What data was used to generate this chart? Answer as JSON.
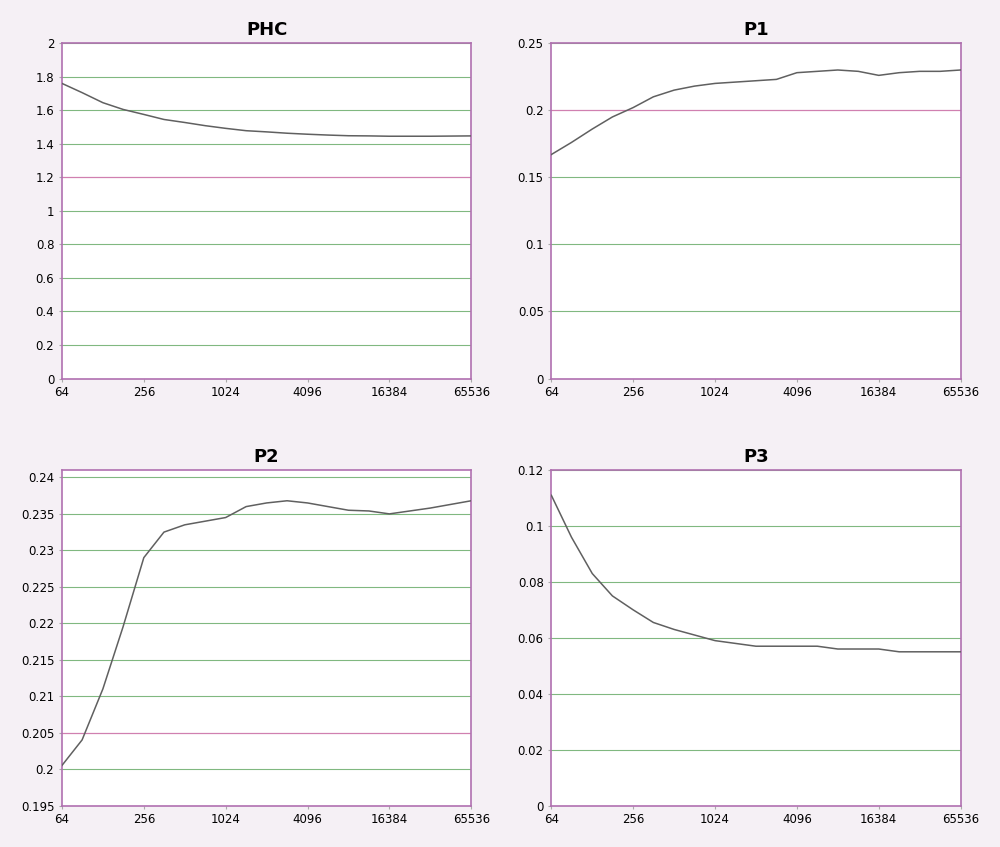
{
  "titles": [
    "PHC",
    "P1",
    "P2",
    "P3"
  ],
  "x_ticks": [
    64,
    256,
    1024,
    4096,
    16384,
    65536
  ],
  "phc": {
    "ylim": [
      0,
      2.0
    ],
    "yticks": [
      0,
      0.2,
      0.4,
      0.6,
      0.8,
      1.0,
      1.2,
      1.4,
      1.6,
      1.8,
      2.0
    ],
    "pink_lines": [
      1.2
    ],
    "green_lines": [
      0.2,
      0.4,
      0.6,
      0.8,
      1.0,
      1.4,
      1.6,
      1.8,
      2.0
    ],
    "gray_lines": [
      0,
      0.2,
      0.4,
      0.6,
      0.8,
      1.0,
      1.2,
      1.4,
      1.6,
      1.8,
      2.0
    ],
    "data_x": [
      64,
      90,
      128,
      180,
      256,
      360,
      512,
      724,
      1024,
      1448,
      2048,
      2896,
      4096,
      5792,
      8192,
      11584,
      16384,
      23168,
      32768,
      46336,
      65536
    ],
    "data_y": [
      1.76,
      1.705,
      1.645,
      1.605,
      1.575,
      1.545,
      1.527,
      1.508,
      1.492,
      1.478,
      1.471,
      1.463,
      1.457,
      1.452,
      1.448,
      1.447,
      1.445,
      1.445,
      1.445,
      1.446,
      1.447
    ]
  },
  "p1": {
    "ylim": [
      0,
      0.25
    ],
    "yticks": [
      0,
      0.05,
      0.1,
      0.15,
      0.2,
      0.25
    ],
    "pink_lines": [
      0.2
    ],
    "green_lines": [
      0.05,
      0.1,
      0.15,
      0.25
    ],
    "gray_lines": [
      0,
      0.05,
      0.1,
      0.15,
      0.2,
      0.25
    ],
    "data_x": [
      64,
      90,
      128,
      180,
      256,
      360,
      512,
      724,
      1024,
      1448,
      2048,
      2896,
      4096,
      5792,
      8192,
      11584,
      16384,
      23168,
      32768,
      46336,
      65536
    ],
    "data_y": [
      0.167,
      0.176,
      0.186,
      0.195,
      0.202,
      0.21,
      0.215,
      0.218,
      0.22,
      0.221,
      0.222,
      0.223,
      0.228,
      0.229,
      0.23,
      0.229,
      0.226,
      0.228,
      0.229,
      0.229,
      0.23
    ]
  },
  "p2": {
    "ylim": [
      0.195,
      0.241
    ],
    "yticks": [
      0.195,
      0.2,
      0.205,
      0.21,
      0.215,
      0.22,
      0.225,
      0.23,
      0.235,
      0.24
    ],
    "pink_lines": [
      0.205
    ],
    "green_lines": [
      0.2,
      0.21,
      0.215,
      0.22,
      0.225,
      0.23,
      0.235,
      0.24
    ],
    "gray_lines": [
      0.195,
      0.2,
      0.205,
      0.21,
      0.215,
      0.22,
      0.225,
      0.23,
      0.235,
      0.24
    ],
    "data_x": [
      64,
      90,
      128,
      180,
      256,
      360,
      512,
      724,
      1024,
      1448,
      2048,
      2896,
      4096,
      5792,
      8192,
      11584,
      16384,
      23168,
      32768,
      46336,
      65536
    ],
    "data_y": [
      0.2005,
      0.204,
      0.211,
      0.2195,
      0.229,
      0.2325,
      0.2335,
      0.234,
      0.2345,
      0.236,
      0.2365,
      0.2368,
      0.2365,
      0.236,
      0.2355,
      0.2354,
      0.235,
      0.2354,
      0.2358,
      0.2363,
      0.2368
    ]
  },
  "p3": {
    "ylim": [
      0,
      0.12
    ],
    "yticks": [
      0,
      0.02,
      0.04,
      0.06,
      0.08,
      0.1,
      0.12
    ],
    "pink_lines": [],
    "green_lines": [
      0.02,
      0.04,
      0.06,
      0.08,
      0.1,
      0.12
    ],
    "gray_lines": [
      0,
      0.02,
      0.04,
      0.06,
      0.08,
      0.1,
      0.12
    ],
    "data_x": [
      64,
      90,
      128,
      180,
      256,
      360,
      512,
      724,
      1024,
      1448,
      2048,
      2896,
      4096,
      5792,
      8192,
      11584,
      16384,
      23168,
      32768,
      46336,
      65536
    ],
    "data_y": [
      0.111,
      0.096,
      0.083,
      0.075,
      0.07,
      0.0655,
      0.063,
      0.061,
      0.059,
      0.058,
      0.057,
      0.057,
      0.057,
      0.057,
      0.056,
      0.056,
      0.056,
      0.055,
      0.055,
      0.055,
      0.055
    ]
  },
  "line_color": "#606060",
  "bg_color": "#ffffff",
  "grid_gray_color": "#b8b8b8",
  "green_color": "#80b880",
  "pink_color": "#d080b0",
  "title_fontsize": 13,
  "tick_fontsize": 8.5,
  "border_color": "#b070b0",
  "fig_bg": "#f5f0f5"
}
